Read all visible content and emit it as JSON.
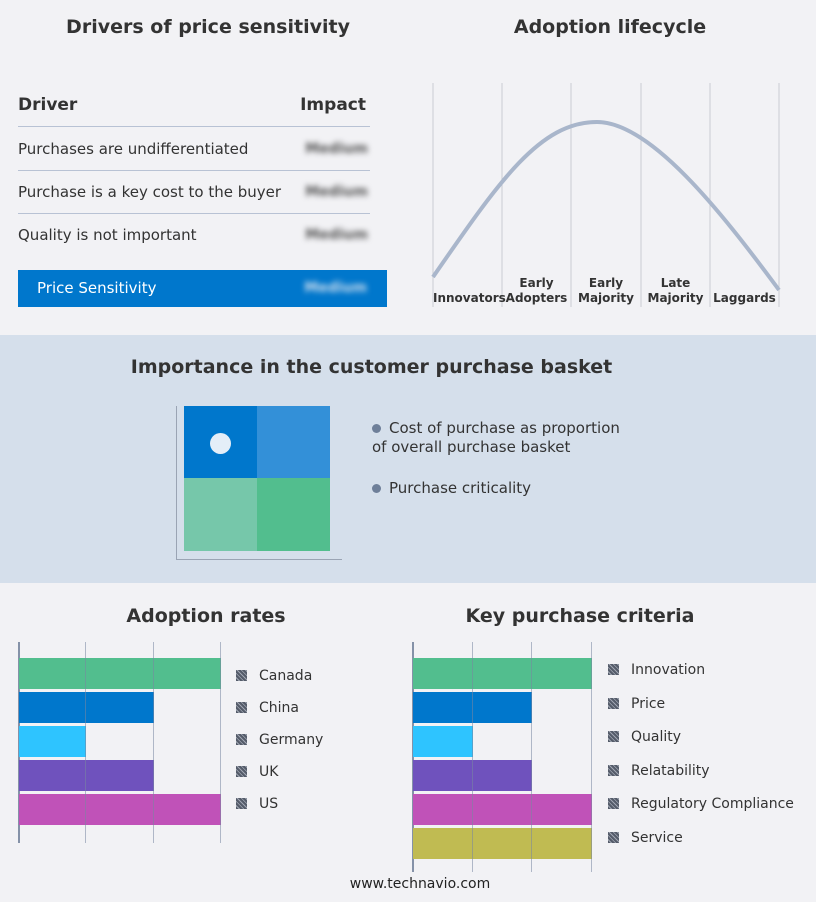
{
  "drivers": {
    "title": "Drivers of price sensitivity",
    "col_driver": "Driver",
    "col_impact": "Impact",
    "rows": [
      {
        "driver": "Purchases are undifferentiated",
        "impact": "Medium"
      },
      {
        "driver": "Purchase is a key cost to the buyer",
        "impact": "Medium"
      },
      {
        "driver": "Quality is not important",
        "impact": "Medium"
      }
    ],
    "summary": {
      "label": "Price Sensitivity",
      "impact": "Medium"
    },
    "accent": "#0077cc"
  },
  "lifecycle": {
    "title": "Adoption lifecycle",
    "stages": [
      "Innovators",
      "Early Adopters",
      "Early Majority",
      "Late Majority",
      "Laggards"
    ],
    "curve_color": "#a9b6cb"
  },
  "basket": {
    "title": "Importance in the customer purchase basket",
    "legend": [
      "Cost of purchase as proportion of overall purchase basket",
      "Purchase criticality"
    ],
    "quadrant_colors": [
      "#0077cc",
      "#3390d8",
      "#76c7aa",
      "#52be8e"
    ]
  },
  "chart_data": [
    {
      "type": "bar",
      "orientation": "horizontal",
      "title": "Adoption rates",
      "categories": [
        "Canada",
        "China",
        "Germany",
        "UK",
        "US"
      ],
      "values": [
        3,
        2,
        1,
        2,
        3
      ],
      "xlim": [
        0,
        3
      ],
      "grid": true,
      "legend": "right",
      "colors": [
        "#52be8e",
        "#0077cc",
        "#2ec4ff",
        "#6f52bd",
        "#c052b8"
      ]
    },
    {
      "type": "bar",
      "orientation": "horizontal",
      "title": "Key purchase criteria",
      "categories": [
        "Innovation",
        "Price",
        "Quality",
        "Relatability",
        "Regulatory Compliance",
        "Service"
      ],
      "values": [
        3,
        2,
        1,
        2,
        3,
        3
      ],
      "xlim": [
        0,
        3
      ],
      "grid": true,
      "legend": "right",
      "colors": [
        "#52be8e",
        "#0077cc",
        "#2ec4ff",
        "#6f52bd",
        "#c052b8",
        "#c0bb52"
      ]
    }
  ],
  "footer": "www.technavio.com"
}
